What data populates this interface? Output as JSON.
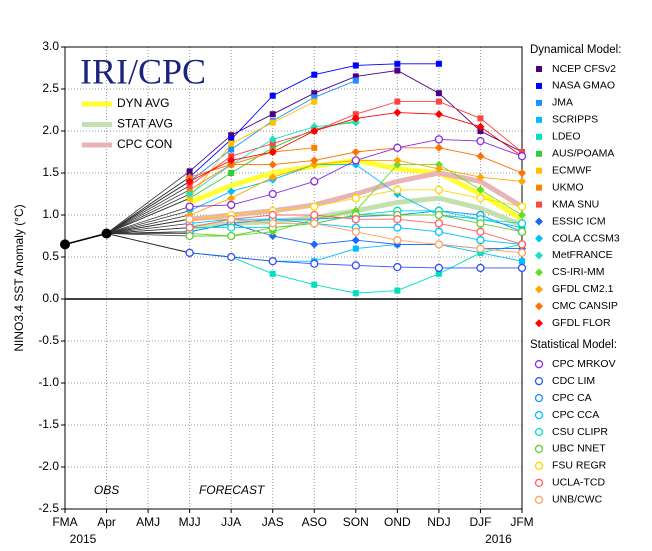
{
  "chart_data": {
    "type": "line",
    "title": "IRI/CPC",
    "y_label": "NINO3.4 SST Anomaly (°C)",
    "categories": [
      "FMA",
      "Apr",
      "AMJ",
      "MJJ",
      "JJA",
      "JAS",
      "ASO",
      "SON",
      "OND",
      "NDJ",
      "DJF",
      "JFM"
    ],
    "year_labels": [
      "2015",
      "2016"
    ],
    "annotations": [
      "OBS",
      "FORECAST"
    ],
    "ylim": [
      -2.5,
      3.0
    ],
    "yticks": [
      {
        "value": 3.0,
        "label": "3.0"
      },
      {
        "value": 2.5,
        "label": "2.5"
      },
      {
        "value": 2.0,
        "label": "2.0"
      },
      {
        "value": 1.5,
        "label": "1.5"
      },
      {
        "value": 1.0,
        "label": "1.0"
      },
      {
        "value": 0.5,
        "label": "0.5"
      },
      {
        "value": 0,
        "label": "0.0"
      },
      {
        "value": -0.5,
        "label": "-0.5"
      },
      {
        "value": -1.0,
        "label": "-1.0"
      },
      {
        "value": -1.5,
        "label": "-1.5"
      },
      {
        "value": -2.0,
        "label": "-2.0"
      },
      {
        "value": -2.5,
        "label": "-2.5"
      }
    ],
    "grid": true,
    "observed": {
      "name": "OBS",
      "color": "#000000",
      "values": [
        0.65,
        0.78,
        null,
        null,
        null,
        null,
        null,
        null,
        null,
        null,
        null,
        null
      ]
    },
    "averages": [
      {
        "name": "DYN AVG",
        "color": "#ffff33",
        "values": [
          null,
          null,
          null,
          1.15,
          1.35,
          1.5,
          1.58,
          1.65,
          1.55,
          1.5,
          1.25,
          0.95
        ]
      },
      {
        "name": "STAT AVG",
        "color": "#c4e0b0",
        "values": [
          null,
          null,
          null,
          0.85,
          0.9,
          0.92,
          0.97,
          1.05,
          1.15,
          1.2,
          1.08,
          0.88
        ]
      },
      {
        "name": "CPC CON",
        "color": "#e8b4b4",
        "values": [
          null,
          null,
          null,
          0.95,
          1.0,
          1.05,
          1.12,
          1.25,
          1.4,
          1.5,
          1.4,
          1.1
        ]
      }
    ],
    "groups": [
      {
        "title": "Dynamical Model:",
        "series": [
          {
            "name": "NCEP CFSv2",
            "color": "#4b0082",
            "marker": "square",
            "values": [
              null,
              null,
              null,
              1.52,
              1.95,
              2.2,
              2.45,
              2.65,
              2.72,
              2.45,
              2.0,
              1.75
            ]
          },
          {
            "name": "NASA GMAO",
            "color": "#0000ff",
            "marker": "square",
            "values": [
              null,
              null,
              null,
              1.45,
              1.9,
              2.42,
              2.67,
              2.78,
              2.8,
              2.8,
              null,
              null
            ]
          },
          {
            "name": "JMA",
            "color": "#1e90ff",
            "marker": "square",
            "values": [
              null,
              null,
              null,
              1.4,
              1.78,
              2.12,
              2.4,
              2.6,
              null,
              null,
              null,
              null
            ]
          },
          {
            "name": "SCRIPPS",
            "color": "#00bfff",
            "marker": "square",
            "values": [
              null,
              null,
              null,
              0.55,
              0.5,
              0.45,
              0.45,
              0.6,
              0.65,
              0.65,
              0.55,
              0.45
            ]
          },
          {
            "name": "LDEO",
            "color": "#00e0c0",
            "marker": "square",
            "values": [
              null,
              null,
              null,
              0.55,
              0.5,
              0.3,
              0.17,
              0.07,
              0.1,
              0.3,
              0.55,
              0.65
            ]
          },
          {
            "name": "AUS/POAMA",
            "color": "#32cd32",
            "marker": "square",
            "values": [
              null,
              null,
              null,
              1.2,
              1.5,
              1.8,
              2.02,
              2.12,
              null,
              null,
              null,
              null
            ]
          },
          {
            "name": "ECMWF",
            "color": "#ffc000",
            "marker": "square",
            "values": [
              null,
              null,
              null,
              1.2,
              1.85,
              2.1,
              2.35,
              null,
              null,
              null,
              null,
              null
            ]
          },
          {
            "name": "UKMO",
            "color": "#ff7f00",
            "marker": "square",
            "values": [
              null,
              null,
              null,
              1.3,
              1.6,
              1.75,
              1.8,
              null,
              null,
              null,
              null,
              null
            ]
          },
          {
            "name": "KMA SNU",
            "color": "#ff4444",
            "marker": "square",
            "values": [
              null,
              null,
              null,
              1.35,
              1.7,
              1.85,
              2.0,
              2.2,
              2.35,
              2.35,
              2.15,
              1.75
            ]
          },
          {
            "name": "ESSIC ICM",
            "color": "#1e64ff",
            "marker": "diamond",
            "values": [
              null,
              null,
              null,
              0.8,
              0.9,
              0.75,
              0.65,
              0.7,
              0.65,
              0.65,
              0.6,
              0.6
            ]
          },
          {
            "name": "COLA CCSM3",
            "color": "#00bfff",
            "marker": "diamond",
            "values": [
              null,
              null,
              null,
              1.05,
              1.28,
              1.42,
              1.6,
              1.6,
              1.25,
              1.0,
              0.95,
              0.85
            ]
          },
          {
            "name": "MetFRANCE",
            "color": "#20e0c0",
            "marker": "diamond",
            "values": [
              null,
              null,
              null,
              1.25,
              1.6,
              1.9,
              2.05,
              2.1,
              null,
              null,
              null,
              null
            ]
          },
          {
            "name": "CS-IRI-MM",
            "color": "#66dd22",
            "marker": "diamond",
            "values": [
              null,
              null,
              null,
              0.78,
              0.75,
              0.8,
              0.95,
              1.05,
              1.6,
              1.6,
              1.3,
              1.0
            ]
          },
          {
            "name": "GFDL CM2.1",
            "color": "#ffa500",
            "marker": "diamond",
            "values": [
              null,
              null,
              null,
              1.0,
              1.2,
              1.45,
              1.6,
              1.65,
              1.65,
              1.55,
              1.45,
              1.4
            ]
          },
          {
            "name": "CMC CANSIP",
            "color": "#ff7000",
            "marker": "diamond",
            "values": [
              null,
              null,
              null,
              1.45,
              1.6,
              1.6,
              1.65,
              1.75,
              1.8,
              1.8,
              1.7,
              1.5
            ]
          },
          {
            "name": "GFDL FLOR",
            "color": "#ff0000",
            "marker": "diamond",
            "values": [
              null,
              null,
              null,
              1.4,
              1.65,
              1.75,
              2.0,
              2.15,
              2.22,
              2.2,
              2.05,
              1.7
            ]
          }
        ]
      },
      {
        "title": "Statistical Model:",
        "series": [
          {
            "name": "CPC MRKOV",
            "color": "#8a2be2",
            "marker": "circle",
            "values": [
              null,
              null,
              null,
              1.1,
              1.12,
              1.25,
              1.4,
              1.65,
              1.8,
              1.9,
              1.88,
              1.7
            ]
          },
          {
            "name": "CDC LIM",
            "color": "#3050ff",
            "marker": "circle",
            "values": [
              null,
              null,
              null,
              0.55,
              0.5,
              0.45,
              0.42,
              0.4,
              0.38,
              0.37,
              0.37,
              0.37
            ]
          },
          {
            "name": "CPC CA",
            "color": "#1e90ff",
            "marker": "circle",
            "values": [
              null,
              null,
              null,
              0.8,
              0.9,
              0.95,
              0.95,
              0.98,
              1.0,
              1.05,
              1.0,
              0.8
            ]
          },
          {
            "name": "CPC CCA",
            "color": "#00bfff",
            "marker": "circle",
            "values": [
              null,
              null,
              null,
              0.9,
              0.95,
              0.95,
              0.9,
              0.85,
              0.85,
              0.8,
              0.7,
              0.65
            ]
          },
          {
            "name": "CSU CLIPR",
            "color": "#00ddcc",
            "marker": "circle",
            "values": [
              null,
              null,
              null,
              0.85,
              0.85,
              0.85,
              0.9,
              1.0,
              1.05,
              1.05,
              0.95,
              0.9
            ]
          },
          {
            "name": "UBC NNET",
            "color": "#66cc33",
            "marker": "circle",
            "values": [
              null,
              null,
              null,
              0.75,
              0.75,
              0.85,
              0.9,
              1.0,
              1.0,
              1.0,
              0.9,
              0.8
            ]
          },
          {
            "name": "FSU REGR",
            "color": "#ffd700",
            "marker": "circle",
            "values": [
              null,
              null,
              null,
              0.95,
              1.0,
              1.05,
              1.1,
              1.2,
              1.3,
              1.3,
              1.2,
              1.1
            ]
          },
          {
            "name": "UCLA-TCD",
            "color": "#ff6060",
            "marker": "circle",
            "values": [
              null,
              null,
              null,
              0.85,
              0.95,
              1.0,
              1.0,
              0.95,
              0.95,
              0.9,
              0.8,
              0.65
            ]
          },
          {
            "name": "UNB/CWC",
            "color": "#ffa060",
            "marker": "circle",
            "values": [
              null,
              null,
              null,
              0.95,
              0.95,
              0.9,
              0.9,
              0.8,
              0.7,
              0.65,
              0.6,
              0.55
            ]
          }
        ]
      }
    ]
  }
}
